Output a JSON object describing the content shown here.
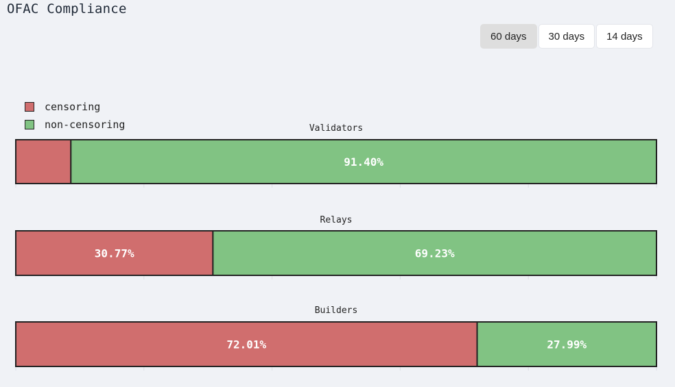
{
  "header": {
    "title": "OFAC Compliance"
  },
  "range_selector": {
    "options": [
      {
        "label": "60 days",
        "active": true
      },
      {
        "label": "30 days",
        "active": false
      },
      {
        "label": "14 days",
        "active": false
      }
    ]
  },
  "colors": {
    "censoring": "#d06e6e",
    "non_censoring": "#81c383"
  },
  "chart_data": {
    "type": "bar",
    "orientation": "horizontal",
    "stacked": true,
    "normalized": true,
    "legend": {
      "position": "top-left",
      "entries": [
        "censoring",
        "non-censoring"
      ]
    },
    "series": [
      {
        "name": "censoring",
        "color": "#d06e6e"
      },
      {
        "name": "non-censoring",
        "color": "#81c383"
      }
    ],
    "panels": [
      {
        "title": "Validators",
        "values": [
          8.6,
          91.4
        ],
        "labels": [
          "",
          "91.40%"
        ]
      },
      {
        "title": "Relays",
        "values": [
          30.77,
          69.23
        ],
        "labels": [
          "30.77%",
          "69.23%"
        ]
      },
      {
        "title": "Builders",
        "values": [
          72.01,
          27.99
        ],
        "labels": [
          "72.01%",
          "27.99%"
        ]
      }
    ],
    "xlim": [
      0,
      100
    ],
    "grid": true
  }
}
